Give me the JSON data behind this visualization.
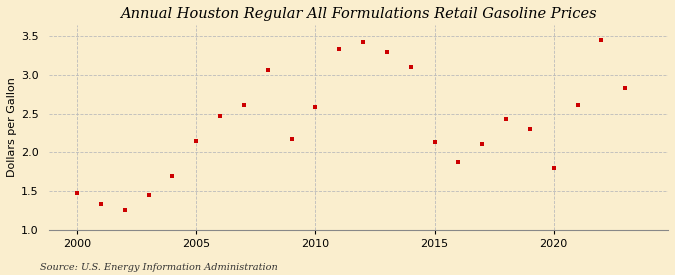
{
  "title": "Annual Houston Regular All Formulations Retail Gasoline Prices",
  "ylabel": "Dollars per Gallon",
  "source": "Source: U.S. Energy Information Administration",
  "years": [
    2000,
    2001,
    2002,
    2003,
    2004,
    2005,
    2006,
    2007,
    2008,
    2009,
    2010,
    2011,
    2012,
    2013,
    2014,
    2015,
    2016,
    2017,
    2018,
    2019,
    2020,
    2021,
    2022,
    2023
  ],
  "values": [
    1.47,
    1.33,
    1.26,
    1.45,
    1.7,
    2.15,
    2.47,
    2.61,
    3.07,
    2.17,
    2.59,
    3.34,
    3.43,
    3.3,
    3.11,
    2.13,
    1.88,
    2.11,
    2.43,
    2.3,
    1.8,
    2.62,
    3.46,
    2.84
  ],
  "ylim": [
    1.0,
    3.65
  ],
  "yticks": [
    1.0,
    1.5,
    2.0,
    2.5,
    3.0,
    3.5
  ],
  "xlim": [
    1998.8,
    2024.8
  ],
  "xticks": [
    2000,
    2005,
    2010,
    2015,
    2020
  ],
  "bg_color": "#faeece",
  "marker_color": "#cc0000",
  "grid_h_color": "#bbbbbb",
  "grid_v_color": "#bbbbbb",
  "title_fontsize": 10.5,
  "label_fontsize": 8,
  "tick_fontsize": 8,
  "source_fontsize": 7
}
